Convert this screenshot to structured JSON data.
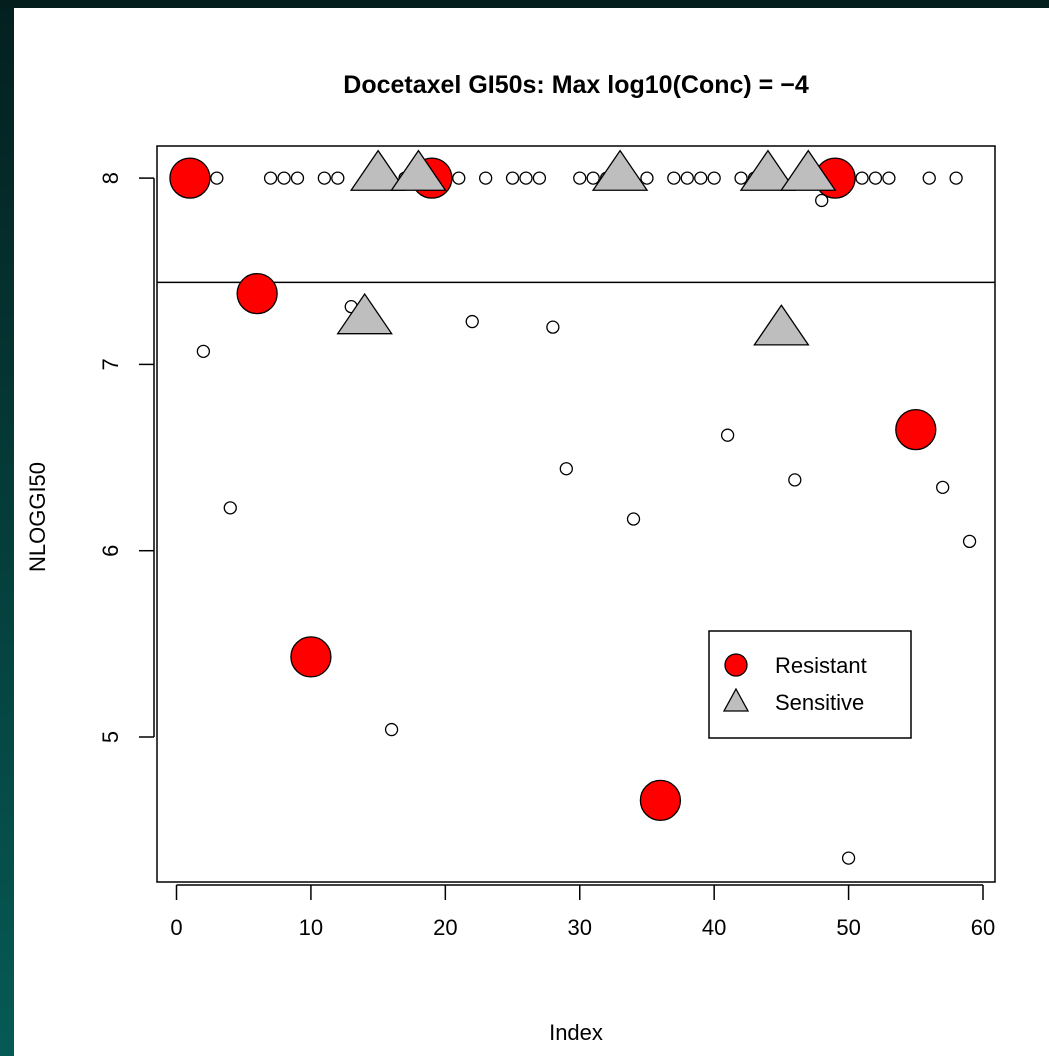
{
  "chart_data": {
    "type": "scatter",
    "title": "Docetaxel GI50s: Max log10(Conc) = −4",
    "xlabel": "Index",
    "ylabel": "NLOGGI50",
    "xlim": [
      0,
      60
    ],
    "ylim": [
      4.4,
      8.1
    ],
    "x_ticks": [
      0,
      10,
      20,
      30,
      40,
      50,
      60
    ],
    "y_ticks": [
      5,
      6,
      7,
      8
    ],
    "reference_line_y": 7.44,
    "grid": false,
    "legend_position": "right",
    "colors": {
      "resistant": "#ff0000",
      "sensitive": "#bebebe",
      "other": "#ffffff"
    },
    "series": [
      {
        "name": "Resistant",
        "marker": "circle",
        "points": [
          [
            1,
            8.0
          ],
          [
            6,
            7.38
          ],
          [
            10,
            5.43
          ],
          [
            19,
            8.0
          ],
          [
            36,
            4.66
          ],
          [
            49,
            8.0
          ],
          [
            55,
            6.65
          ]
        ]
      },
      {
        "name": "Sensitive",
        "marker": "triangle",
        "points": [
          [
            14,
            7.25
          ],
          [
            15,
            8.02
          ],
          [
            18,
            8.02
          ],
          [
            33,
            8.02
          ],
          [
            44,
            8.02
          ],
          [
            45,
            7.19
          ],
          [
            47,
            8.02
          ]
        ]
      },
      {
        "marker": "open-circle",
        "points": [
          [
            2,
            7.07
          ],
          [
            3,
            8.0
          ],
          [
            4,
            6.23
          ],
          [
            7,
            8.0
          ],
          [
            8,
            8.0
          ],
          [
            9,
            8.0
          ],
          [
            11,
            8.0
          ],
          [
            12,
            8.0
          ],
          [
            13,
            7.31
          ],
          [
            16,
            5.04
          ],
          [
            17,
            8.0
          ],
          [
            20,
            8.0
          ],
          [
            21,
            8.0
          ],
          [
            22,
            7.23
          ],
          [
            23,
            8.0
          ],
          [
            25,
            8.0
          ],
          [
            26,
            8.0
          ],
          [
            27,
            8.0
          ],
          [
            28,
            7.2
          ],
          [
            29,
            6.44
          ],
          [
            30,
            8.0
          ],
          [
            31,
            8.0
          ],
          [
            32,
            8.0
          ],
          [
            34,
            6.17
          ],
          [
            35,
            8.0
          ],
          [
            37,
            8.0
          ],
          [
            38,
            8.0
          ],
          [
            39,
            8.0
          ],
          [
            40,
            8.0
          ],
          [
            41,
            6.62
          ],
          [
            42,
            8.0
          ],
          [
            43,
            8.0
          ],
          [
            46,
            6.38
          ],
          [
            48,
            7.88
          ],
          [
            50,
            4.35
          ],
          [
            51,
            8.0
          ],
          [
            52,
            8.0
          ],
          [
            53,
            8.0
          ],
          [
            56,
            8.0
          ],
          [
            57,
            6.34
          ],
          [
            58,
            8.0
          ],
          [
            59,
            6.05
          ]
        ]
      }
    ],
    "legend": [
      "Resistant",
      "Sensitive"
    ]
  }
}
